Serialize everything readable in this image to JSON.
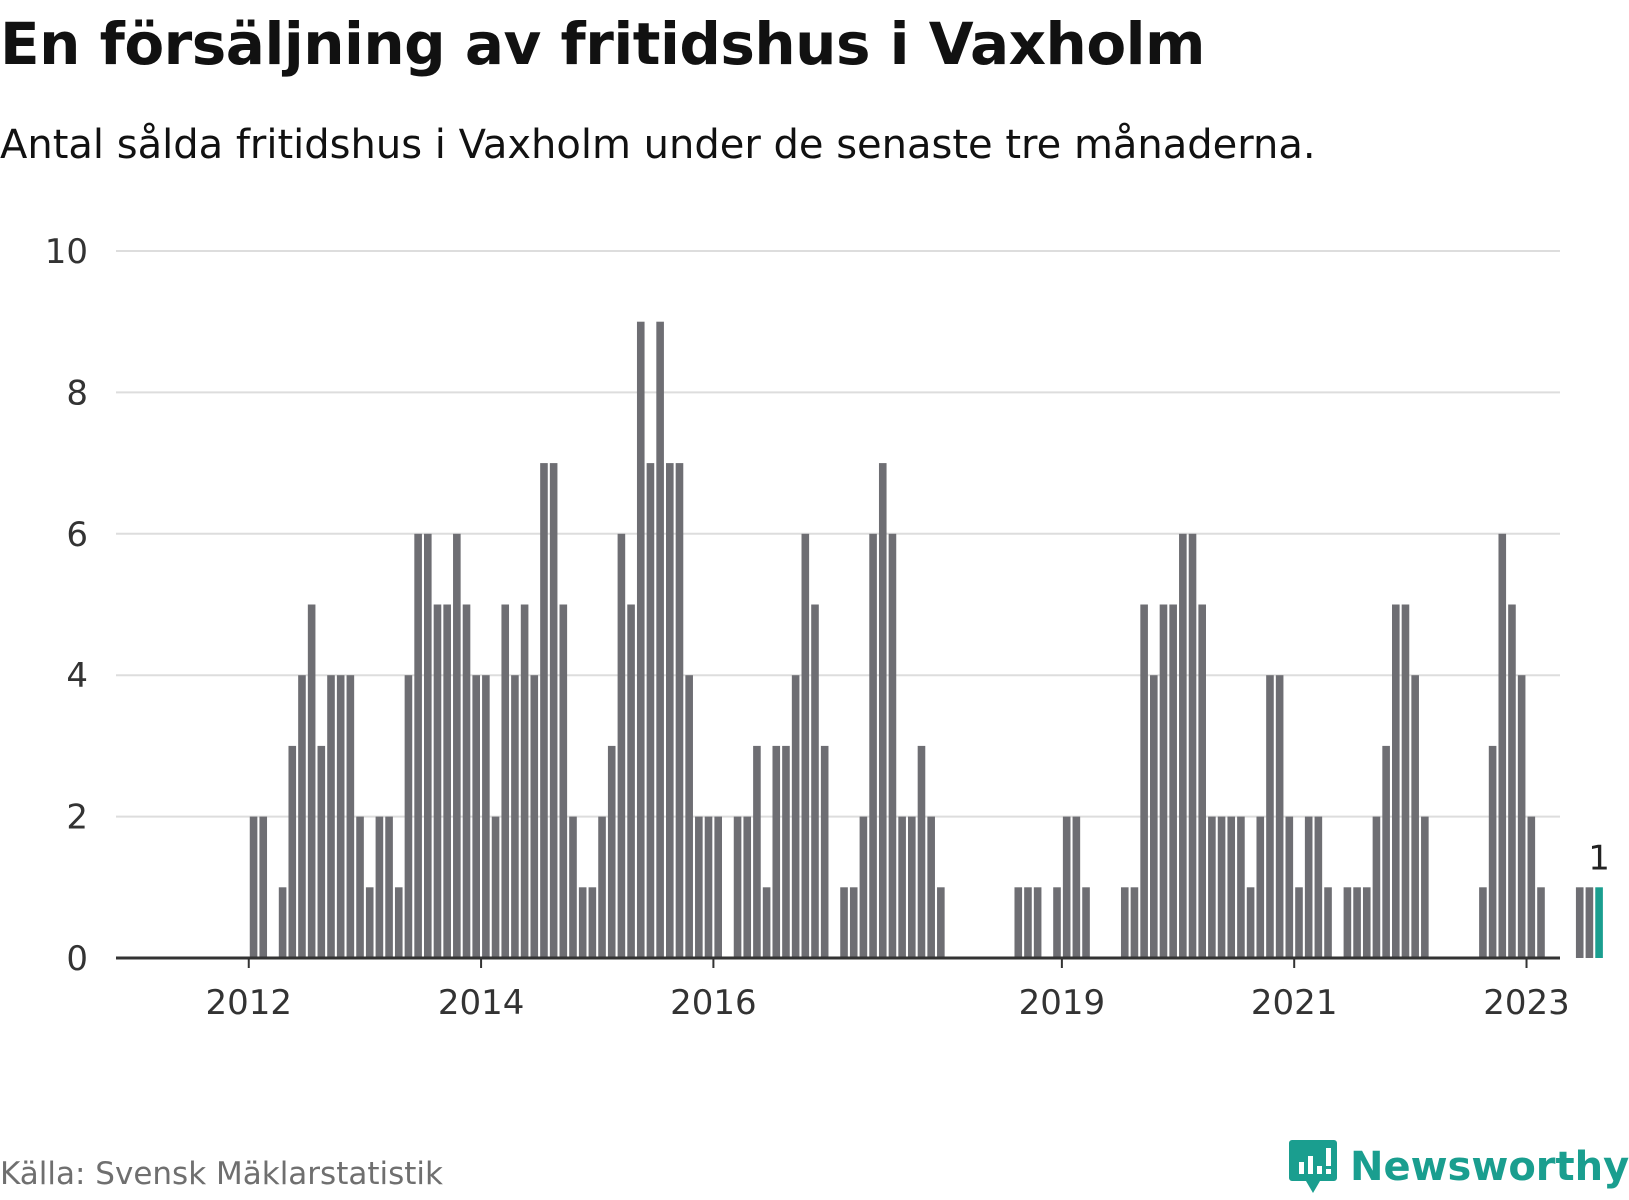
{
  "title": "En försäljning av fritidshus i Vaxholm",
  "subtitle": "Antal sålda fritidshus i Vaxholm under de senaste tre månaderna.",
  "source": "Källa: Svensk Mäklarstatistik",
  "brand": {
    "name": "Newsworthy",
    "icon": "newsworthy-logo-icon",
    "color": "#1a9e8f"
  },
  "colors": {
    "bar": "#6e6e73",
    "highlight": "#1a9e8f",
    "grid": "#dddddd",
    "axis": "#333333"
  },
  "chart_data": {
    "type": "bar",
    "ylim": [
      0,
      10
    ],
    "yticks": [
      0,
      2,
      4,
      6,
      8,
      10
    ],
    "xtick_labels": [
      "2012",
      "2014",
      "2016",
      "2019",
      "2021",
      "2023"
    ],
    "xtick_positions": [
      7,
      31,
      55,
      91,
      115,
      139
    ],
    "start_index": 0,
    "values": [
      0,
      0,
      0,
      0,
      0,
      0,
      0,
      2,
      2,
      0,
      1,
      3,
      4,
      5,
      3,
      4,
      4,
      4,
      2,
      1,
      2,
      2,
      1,
      4,
      6,
      6,
      5,
      5,
      6,
      5,
      4,
      4,
      2,
      5,
      4,
      5,
      4,
      7,
      7,
      5,
      2,
      1,
      1,
      2,
      3,
      6,
      5,
      9,
      7,
      9,
      7,
      7,
      4,
      2,
      2,
      2,
      0,
      2,
      2,
      3,
      1,
      3,
      3,
      4,
      6,
      5,
      3,
      0,
      1,
      1,
      2,
      6,
      7,
      6,
      2,
      2,
      3,
      2,
      1,
      0,
      0,
      0,
      0,
      0,
      0,
      0,
      1,
      1,
      1,
      0,
      1,
      2,
      2,
      1,
      0,
      0,
      0,
      1,
      1,
      5,
      4,
      5,
      5,
      6,
      6,
      5,
      2,
      2,
      2,
      2,
      1,
      2,
      4,
      4,
      2,
      1,
      2,
      2,
      1,
      0,
      1,
      1,
      1,
      2,
      3,
      5,
      5,
      4,
      2,
      0,
      0,
      0,
      0,
      0,
      1,
      3,
      6,
      5,
      4,
      2,
      1,
      0,
      0,
      0,
      1,
      1,
      1
    ],
    "highlight_last": true,
    "last_label": "1"
  }
}
